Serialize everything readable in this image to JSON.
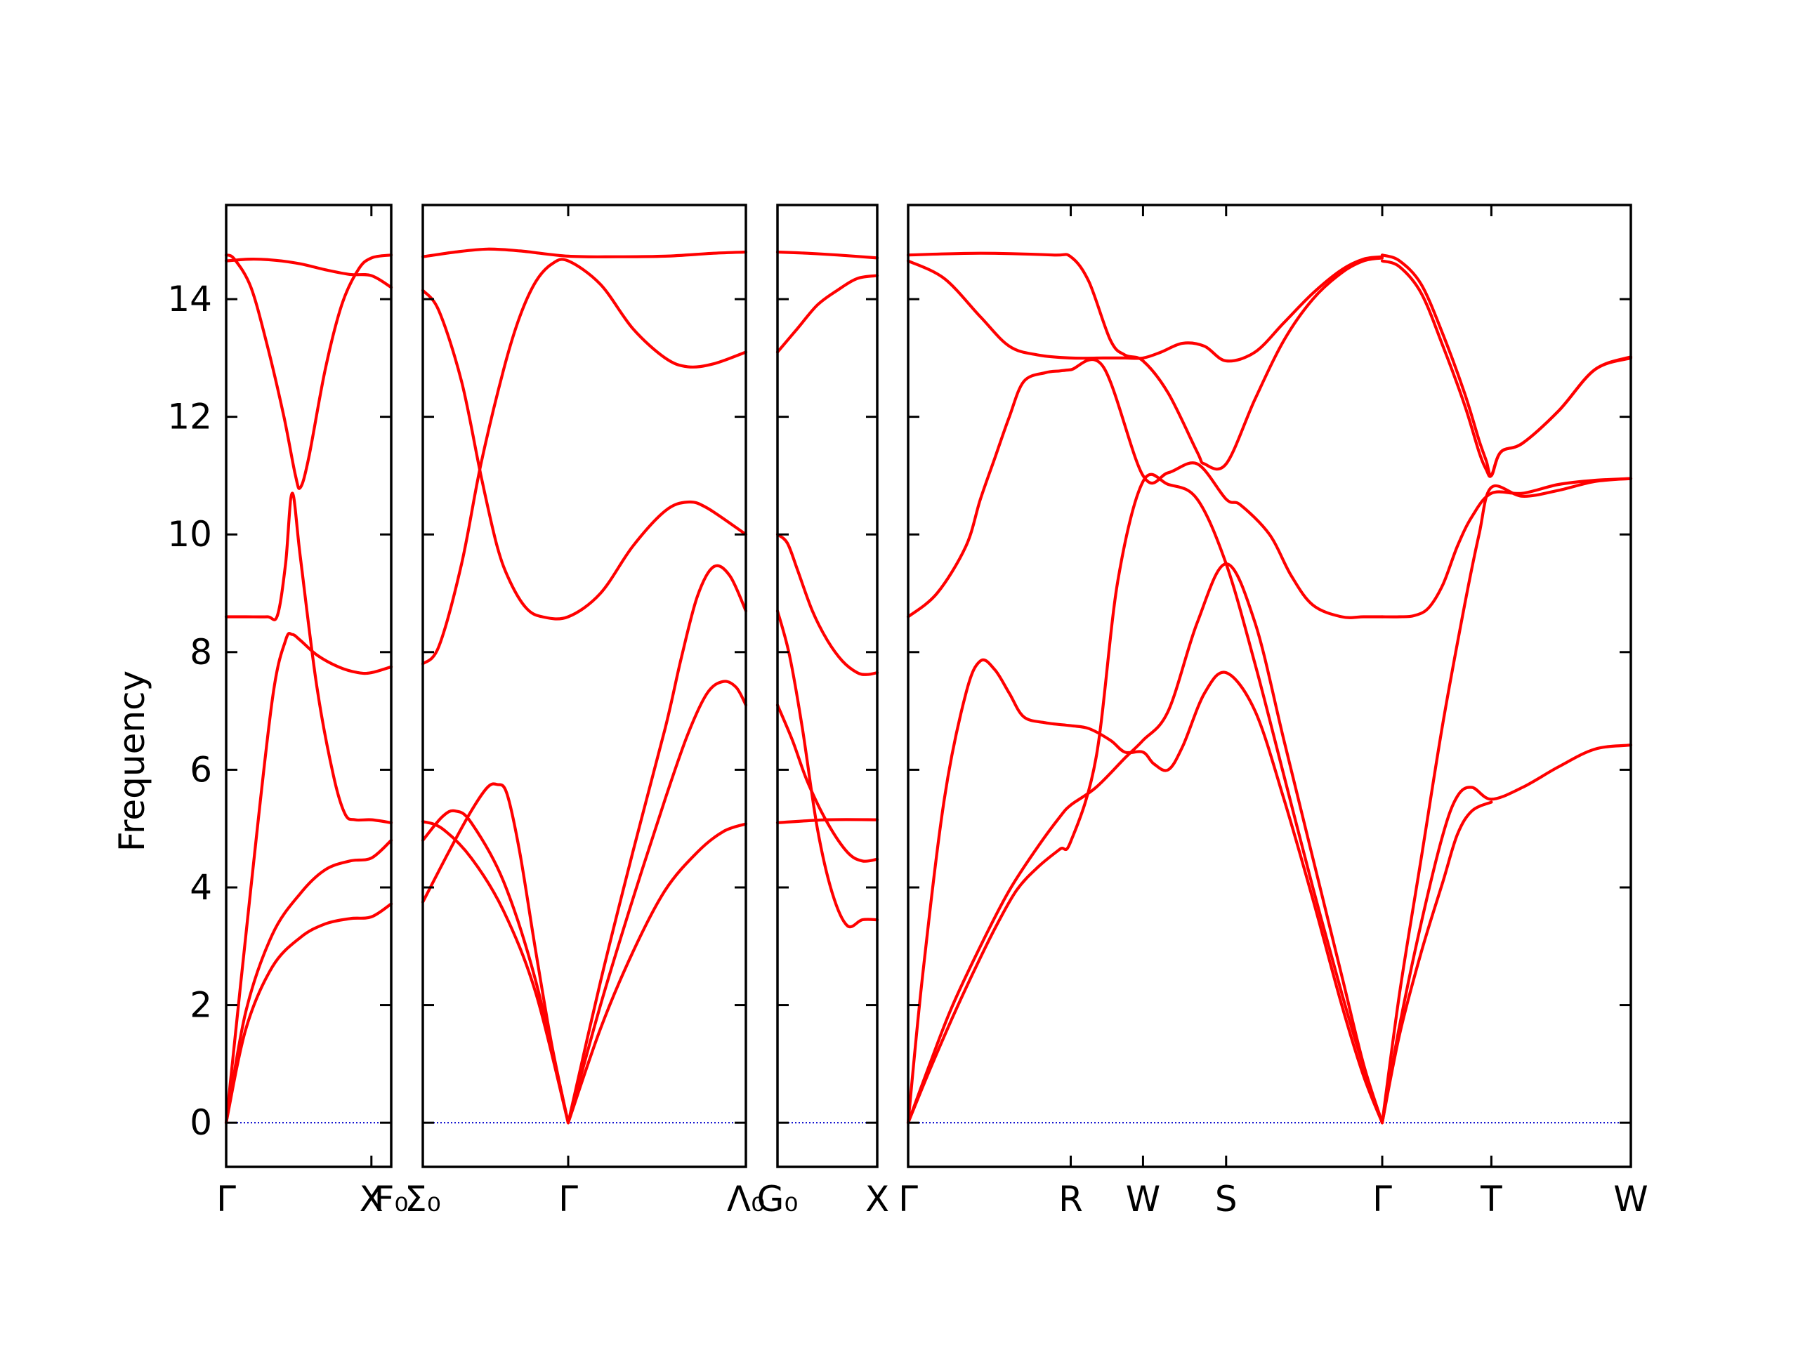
{
  "chart_data": {
    "type": "line",
    "ylabel": "Frequency",
    "ylim": [
      -0.75,
      15.6
    ],
    "yticks": [
      0,
      2,
      4,
      6,
      8,
      10,
      12,
      14
    ],
    "line_color": "#ff0000",
    "zero_line_color": "#0000cc",
    "grid": false,
    "panels": [
      {
        "xlim": [
          0,
          1
        ],
        "xticks": [
          {
            "x": 0,
            "label": "Γ"
          },
          {
            "x": 0.88,
            "label": "X"
          },
          {
            "x": 1,
            "label": "F₀"
          }
        ],
        "series": [
          {
            "x": [
              0,
              0.12,
              0.28,
              0.45,
              0.6,
              0.75,
              0.88,
              1
            ],
            "y": [
              0,
              1.6,
              2.65,
              3.15,
              3.38,
              3.47,
              3.5,
              3.72
            ]
          },
          {
            "x": [
              0,
              0.12,
              0.28,
              0.45,
              0.6,
              0.75,
              0.88,
              1
            ],
            "y": [
              0,
              1.9,
              3.2,
              3.9,
              4.3,
              4.45,
              4.5,
              4.8
            ]
          },
          {
            "x": [
              0,
              0.15,
              0.28,
              0.36,
              0.4,
              0.45,
              0.55,
              0.68,
              0.8,
              0.88,
              1
            ],
            "y": [
              0,
              4.0,
              7.2,
              8.2,
              8.3,
              8.2,
              7.95,
              7.75,
              7.65,
              7.65,
              7.75
            ]
          },
          {
            "x": [
              0,
              0.12,
              0.25,
              0.31,
              0.36,
              0.4,
              0.45,
              0.55,
              0.65,
              0.72,
              0.78,
              0.88,
              1
            ],
            "y": [
              8.6,
              8.6,
              8.6,
              8.62,
              9.5,
              10.7,
              9.6,
              7.4,
              5.9,
              5.25,
              5.15,
              5.15,
              5.1
            ]
          },
          {
            "x": [
              0,
              0.05,
              0.15,
              0.25,
              0.35,
              0.42,
              0.45,
              0.5,
              0.6,
              0.7,
              0.8,
              0.88,
              1
            ],
            "y": [
              14.75,
              14.68,
              14.2,
              13.2,
              12.0,
              11.0,
              10.8,
              11.3,
              12.8,
              13.9,
              14.5,
              14.7,
              14.75
            ]
          },
          {
            "x": [
              0,
              0.15,
              0.3,
              0.45,
              0.6,
              0.75,
              0.88,
              1
            ],
            "y": [
              14.65,
              14.68,
              14.66,
              14.6,
              14.5,
              14.42,
              14.4,
              14.2
            ]
          }
        ]
      },
      {
        "xlim": [
          0,
          1
        ],
        "xticks": [
          {
            "x": 0,
            "label": "Σ₀"
          },
          {
            "x": 0.45,
            "label": "Γ"
          },
          {
            "x": 1,
            "label": "Λ₀"
          }
        ],
        "series": [
          {
            "x": [
              0,
              0.06,
              0.15,
              0.25,
              0.35,
              0.45
            ],
            "y": [
              5.12,
              5.0,
              4.5,
              3.6,
              2.2,
              0
            ]
          },
          {
            "x": [
              0,
              0.06,
              0.1,
              0.15,
              0.25,
              0.35,
              0.45
            ],
            "y": [
              4.8,
              5.2,
              5.3,
              5.1,
              4.1,
              2.4,
              0
            ]
          },
          {
            "x": [
              0,
              0.08,
              0.15,
              0.2,
              0.23,
              0.26,
              0.3,
              0.35,
              0.4,
              0.45
            ],
            "y": [
              3.75,
              4.6,
              5.3,
              5.7,
              5.75,
              5.6,
              4.6,
              2.9,
              1.3,
              0
            ]
          },
          {
            "x": [
              0.45,
              0.55,
              0.65,
              0.75,
              0.85,
              0.93,
              1
            ],
            "y": [
              0,
              1.6,
              2.9,
              3.95,
              4.6,
              4.95,
              5.08
            ]
          },
          {
            "x": [
              0.45,
              0.55,
              0.65,
              0.75,
              0.82,
              0.88,
              0.93,
              0.97,
              1
            ],
            "y": [
              0,
              2.0,
              3.8,
              5.5,
              6.6,
              7.3,
              7.5,
              7.4,
              7.1
            ]
          },
          {
            "x": [
              0.45,
              0.55,
              0.65,
              0.75,
              0.8,
              0.85,
              0.9,
              0.95,
              1
            ],
            "y": [
              0,
              2.4,
              4.6,
              6.7,
              7.9,
              8.95,
              9.45,
              9.3,
              8.7
            ]
          },
          {
            "x": [
              0,
              0.05,
              0.12,
              0.18,
              0.25,
              0.3,
              0.35,
              0.4,
              0.45,
              0.55,
              0.65,
              0.75,
              0.82,
              0.9,
              1
            ],
            "y": [
              7.8,
              8.1,
              9.5,
              11.2,
              12.8,
              13.7,
              14.3,
              14.6,
              14.65,
              14.25,
              13.5,
              13.0,
              12.85,
              12.9,
              13.1
            ]
          },
          {
            "x": [
              0,
              0.05,
              0.12,
              0.18,
              0.23,
              0.27,
              0.32,
              0.37,
              0.45,
              0.55,
              0.65,
              0.75,
              0.82,
              0.88,
              1
            ],
            "y": [
              14.15,
              13.8,
              12.6,
              11.0,
              9.8,
              9.2,
              8.75,
              8.6,
              8.6,
              9.0,
              9.8,
              10.4,
              10.55,
              10.45,
              10.0
            ]
          },
          {
            "x": [
              0,
              0.1,
              0.2,
              0.3,
              0.45,
              0.6,
              0.75,
              0.9,
              1
            ],
            "y": [
              14.72,
              14.8,
              14.85,
              14.82,
              14.73,
              14.72,
              14.73,
              14.78,
              14.8
            ]
          }
        ]
      },
      {
        "xlim": [
          0,
          1
        ],
        "xticks": [
          {
            "x": 0,
            "label": "G₀"
          },
          {
            "x": 1,
            "label": "X"
          }
        ],
        "series": [
          {
            "x": [
              0,
              0.5,
              1
            ],
            "y": [
              5.1,
              5.15,
              5.15
            ]
          },
          {
            "x": [
              0,
              0.12,
              0.25,
              0.4,
              0.55,
              0.7,
              0.85,
              1
            ],
            "y": [
              8.7,
              7.95,
              6.7,
              5.0,
              3.9,
              3.35,
              3.45,
              3.45
            ]
          },
          {
            "x": [
              0,
              0.15,
              0.3,
              0.5,
              0.7,
              0.85,
              1
            ],
            "y": [
              7.1,
              6.5,
              5.8,
              5.1,
              4.6,
              4.45,
              4.48
            ]
          },
          {
            "x": [
              0,
              0.1,
              0.2,
              0.35,
              0.5,
              0.65,
              0.8,
              0.9,
              1
            ],
            "y": [
              10.0,
              9.85,
              9.4,
              8.7,
              8.2,
              7.85,
              7.65,
              7.62,
              7.65
            ]
          },
          {
            "x": [
              0,
              0.2,
              0.4,
              0.6,
              0.8,
              1
            ],
            "y": [
              13.1,
              13.5,
              13.9,
              14.15,
              14.35,
              14.4
            ]
          },
          {
            "x": [
              0,
              0.3,
              0.6,
              1
            ],
            "y": [
              14.8,
              14.78,
              14.75,
              14.7
            ]
          }
        ]
      },
      {
        "xlim": [
          0,
          1
        ],
        "xticks": [
          {
            "x": 0,
            "label": "Γ"
          },
          {
            "x": 0.225,
            "label": "R"
          },
          {
            "x": 0.325,
            "label": "W"
          },
          {
            "x": 0.44,
            "label": "S"
          },
          {
            "x": 0.656,
            "label": "Γ"
          },
          {
            "x": 0.807,
            "label": "T"
          },
          {
            "x": 1,
            "label": "W"
          }
        ],
        "series": [
          {
            "x": [
              0,
              0.03,
              0.06,
              0.09,
              0.12,
              0.15,
              0.18,
              0.21,
              0.225,
              0.26,
              0.29,
              0.325,
              0.36,
              0.4,
              0.44,
              0.48,
              0.52,
              0.56,
              0.6,
              0.63,
              0.656
            ],
            "y": [
              0,
              0.9,
              1.75,
              2.55,
              3.3,
              3.95,
              4.35,
              4.65,
              4.78,
              6.2,
              9.2,
              10.9,
              10.85,
              10.6,
              9.5,
              7.8,
              5.9,
              4.0,
              2.2,
              0.95,
              0
            ]
          },
          {
            "x": [
              0,
              0.03,
              0.06,
              0.1,
              0.14,
              0.18,
              0.21,
              0.225,
              0.26,
              0.3,
              0.325,
              0.36,
              0.4,
              0.44,
              0.48,
              0.52,
              0.56,
              0.6,
              0.63,
              0.656
            ],
            "y": [
              0,
              1.0,
              1.95,
              3.0,
              3.95,
              4.7,
              5.2,
              5.4,
              5.7,
              6.2,
              6.5,
              7.0,
              8.5,
              9.5,
              8.5,
              6.5,
              4.5,
              2.5,
              1.0,
              0
            ]
          },
          {
            "x": [
              0,
              0.02,
              0.05,
              0.08,
              0.1,
              0.12,
              0.14,
              0.16,
              0.19,
              0.225,
              0.25,
              0.28,
              0.3,
              0.325,
              0.34,
              0.36,
              0.38,
              0.41,
              0.44,
              0.48,
              0.52,
              0.56,
              0.6,
              0.63,
              0.656
            ],
            "y": [
              0,
              2.5,
              5.5,
              7.3,
              7.85,
              7.7,
              7.3,
              6.9,
              6.8,
              6.75,
              6.7,
              6.5,
              6.3,
              6.3,
              6.1,
              6.0,
              6.4,
              7.3,
              7.65,
              7.0,
              5.5,
              3.8,
              2.0,
              0.8,
              0
            ]
          },
          {
            "x": [
              0,
              0.04,
              0.08,
              0.1,
              0.12,
              0.14,
              0.16,
              0.19,
              0.21,
              0.225,
              0.27,
              0.325,
              0.36,
              0.4,
              0.44,
              0.46,
              0.5,
              0.53,
              0.56,
              0.6,
              0.63,
              0.656
            ],
            "y": [
              8.6,
              9.0,
              9.8,
              10.6,
              11.3,
              12.0,
              12.6,
              12.75,
              12.78,
              12.8,
              12.85,
              11.0,
              11.05,
              11.2,
              10.6,
              10.5,
              10.0,
              9.3,
              8.8,
              8.6,
              8.6,
              8.6
            ]
          },
          {
            "x": [
              0,
              0.05,
              0.1,
              0.14,
              0.18,
              0.225,
              0.27,
              0.3,
              0.325,
              0.35,
              0.38,
              0.41,
              0.44,
              0.48,
              0.52,
              0.56,
              0.6,
              0.63,
              0.656
            ],
            "y": [
              14.65,
              14.35,
              13.7,
              13.2,
              13.05,
              13.0,
              13.0,
              13.0,
              13.0,
              13.1,
              13.25,
              13.2,
              12.95,
              13.1,
              13.6,
              14.1,
              14.5,
              14.68,
              14.72
            ]
          },
          {
            "x": [
              0,
              0.1,
              0.2,
              0.225,
              0.25,
              0.28,
              0.3,
              0.325,
              0.36,
              0.4,
              0.41,
              0.44,
              0.48,
              0.52,
              0.56,
              0.6,
              0.63,
              0.656
            ],
            "y": [
              14.75,
              14.78,
              14.75,
              14.72,
              14.3,
              13.3,
              13.05,
              12.95,
              12.4,
              11.4,
              11.2,
              11.2,
              12.3,
              13.3,
              14.0,
              14.45,
              14.65,
              14.7
            ]
          },
          {
            "x": [
              0.656,
              0.68,
              0.71,
              0.74,
              0.76,
              0.78,
              0.807
            ],
            "y": [
              0,
              1.5,
              2.9,
              4.1,
              4.9,
              5.3,
              5.45
            ]
          },
          {
            "x": [
              0.656,
              0.68,
              0.71,
              0.74,
              0.76,
              0.78,
              0.807,
              0.85,
              0.9,
              0.95,
              1
            ],
            "y": [
              0,
              1.65,
              3.4,
              4.9,
              5.55,
              5.7,
              5.5,
              5.7,
              6.05,
              6.35,
              6.42
            ]
          },
          {
            "x": [
              0.656,
              0.68,
              0.71,
              0.74,
              0.77,
              0.79,
              0.807,
              0.85,
              0.9,
              0.95,
              1
            ],
            "y": [
              0,
              2.2,
              4.5,
              6.8,
              8.8,
              10.0,
              10.8,
              10.65,
              10.75,
              10.9,
              10.95
            ]
          },
          {
            "x": [
              0.656,
              0.68,
              0.7,
              0.72,
              0.74,
              0.76,
              0.78,
              0.807,
              0.85,
              0.9,
              0.95,
              1
            ],
            "y": [
              8.6,
              8.6,
              8.62,
              8.75,
              9.15,
              9.8,
              10.3,
              10.7,
              10.7,
              10.85,
              10.92,
              10.95
            ]
          },
          {
            "x": [
              0.656,
              0.68,
              0.71,
              0.74,
              0.77,
              0.79,
              0.8,
              0.807,
              0.82,
              0.85,
              0.9,
              0.95,
              1
            ],
            "y": [
              14.65,
              14.55,
              14.1,
              13.2,
              12.2,
              11.4,
              11.1,
              11.0,
              11.4,
              11.55,
              12.1,
              12.8,
              13.0
            ]
          },
          {
            "x": [
              0.656,
              0.68,
              0.71,
              0.74,
              0.77,
              0.79,
              0.8,
              0.807,
              0.82,
              0.85,
              0.9,
              0.95,
              1
            ],
            "y": [
              14.75,
              14.65,
              14.25,
              13.4,
              12.4,
              11.6,
              11.25,
              11.0,
              11.4,
              11.55,
              12.1,
              12.8,
              13.02
            ]
          }
        ]
      }
    ]
  }
}
